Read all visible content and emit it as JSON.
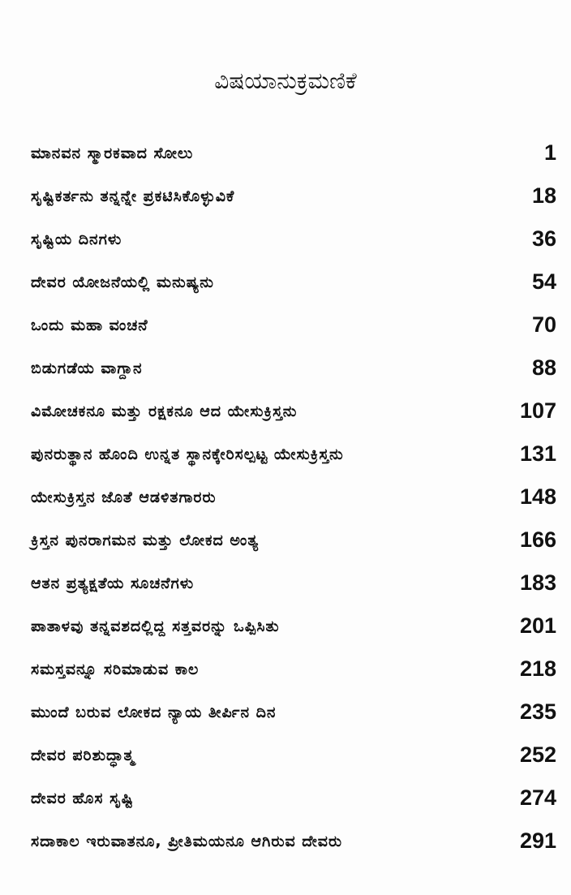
{
  "title": "ವಿಷಯಾನುಕ್ರಮಣಿಕೆ",
  "entries": [
    {
      "title": "ಮಾನವನ ಸ್ಮಾರಕವಾದ ಸೋಲು",
      "page": "1"
    },
    {
      "title": "ಸೃಷ್ಟಿಕರ್ತನು ತನ್ನನ್ನೇ ಪ್ರಕಟಿಸಿಕೊಳ್ಳುವಿಕೆ",
      "page": "18"
    },
    {
      "title": "ಸೃಷ್ಟಿಯ ದಿನಗಳು",
      "page": "36"
    },
    {
      "title": "ದೇವರ ಯೋಜನೆಯಲ್ಲಿ ಮನುಷ್ಯನು",
      "page": "54"
    },
    {
      "title": "ಒಂದು ಮಹಾ ವಂಚನೆ",
      "page": "70"
    },
    {
      "title": "ಬಿಡುಗಡೆಯ ವಾಗ್ದಾನ",
      "page": "88"
    },
    {
      "title": "ವಿಮೋಚಕನೂ ಮತ್ತು ರಕ್ಷಕನೂ ಆದ ಯೇಸುಕ್ರಿಸ್ತನು",
      "page": "107"
    },
    {
      "title": "ಪುನರುತ್ಥಾನ ಹೊಂದಿ ಉನ್ನತ ಸ್ಥಾನಕ್ಕೇರಿಸಲ್ಪಟ್ಟ ಯೇಸುಕ್ರಿಸ್ತನು",
      "page": "131"
    },
    {
      "title": "ಯೇಸುಕ್ರಿಸ್ತನ ಜೊತೆ ಆಡಳಿತಗಾರರು",
      "page": "148"
    },
    {
      "title": "ಕ್ರಿಸ್ತನ ಪುನರಾಗಮನ ಮತ್ತು ಲೋಕದ ಅಂತ್ಯ",
      "page": "166"
    },
    {
      "title": "ಆತನ ಪ್ರತ್ಯಕ್ಷತೆಯ ಸೂಚನೆಗಳು",
      "page": "183"
    },
    {
      "title": "ಪಾತಾಳವು ತನ್ನವಶದಲ್ಲಿದ್ದ ಸತ್ತವರನ್ನು ಒಪ್ಪಿಸಿತು",
      "page": "201"
    },
    {
      "title": "ಸಮಸ್ತವನ್ನೂ ಸರಿಮಾಡುವ ಕಾಲ",
      "page": "218"
    },
    {
      "title": "ಮುಂದೆ ಬರುವ ಲೋಕದ ನ್ಯಾಯ ತೀರ್ಪಿನ ದಿನ",
      "page": "235"
    },
    {
      "title": "ದೇವರ ಪರಿಶುದ್ಧಾತ್ಮ",
      "page": "252"
    },
    {
      "title": "ದೇವರ ಹೊಸ ಸೃಷ್ಟಿ",
      "page": "274"
    },
    {
      "title": "ಸದಾಕಾಲ ಇರುವಾತನೂ, ಪ್ರೀತಿಮಯನೂ ಆಗಿರುವ ದೇವರು",
      "page": "291"
    }
  ]
}
